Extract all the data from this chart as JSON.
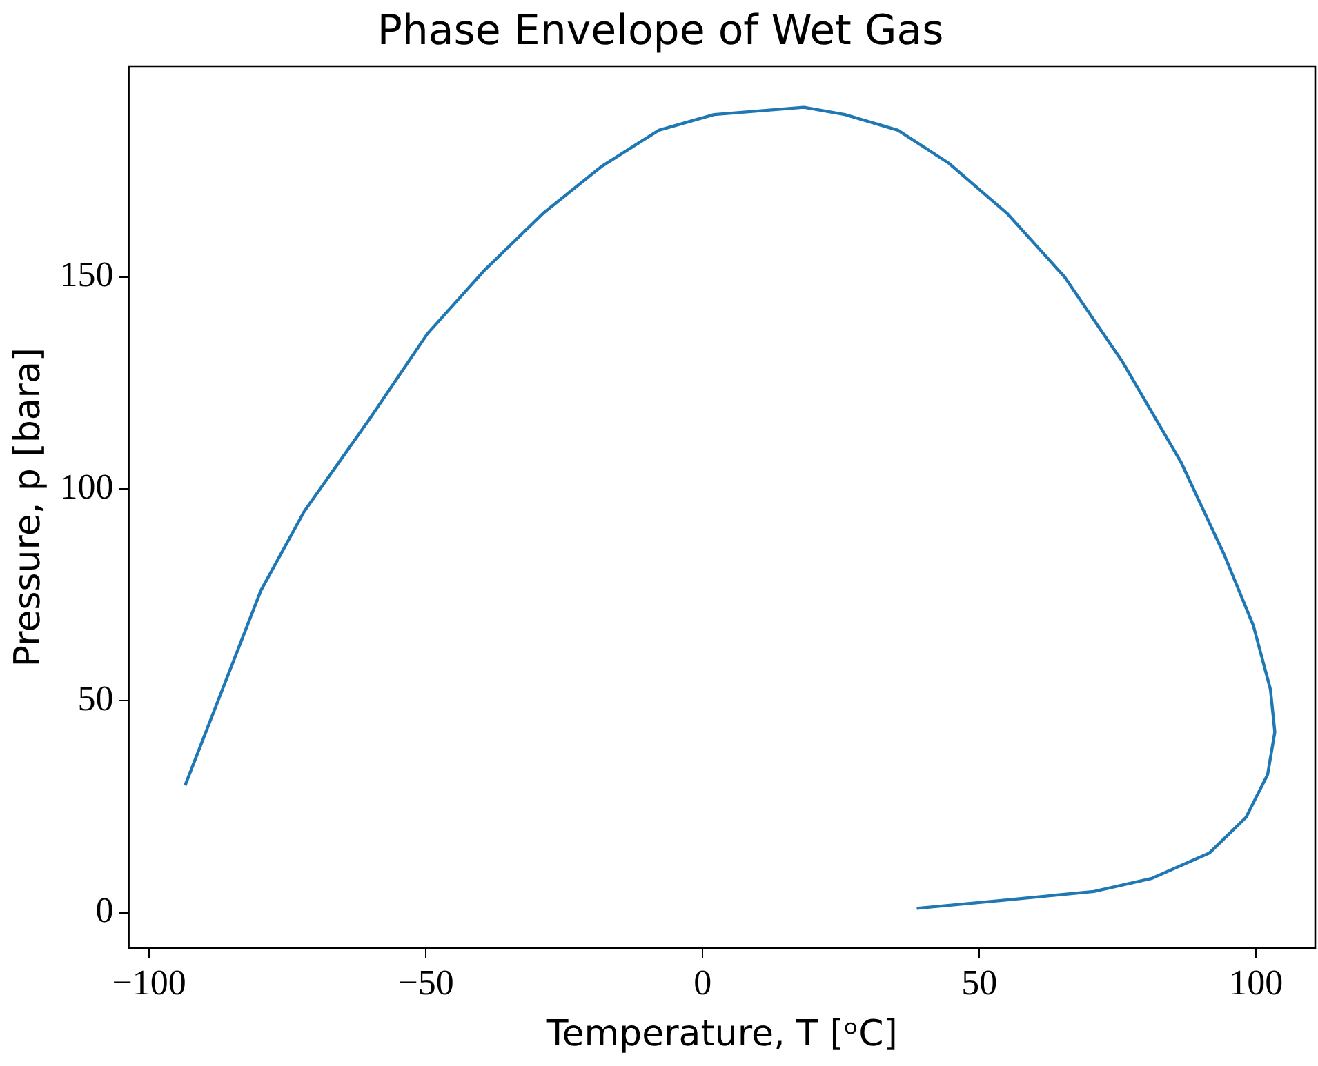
{
  "chart_data": {
    "type": "line",
    "title": "Phase Envelope of Wet Gas",
    "xlabel": "Temperature, T [ᵒC]",
    "ylabel": "Pressure, p [bara]",
    "x": [
      -93.5,
      -79.8,
      -72,
      -60.2,
      -49.7,
      -39.3,
      -28.8,
      -18.3,
      -7.9,
      2.1,
      18.3,
      25.7,
      35.3,
      44.5,
      55,
      65.4,
      75.9,
      86.4,
      94.2,
      99.5,
      102.6,
      103.4,
      102.1,
      98.2,
      91.6,
      81.2,
      70.7,
      55,
      38.7
    ],
    "series": [
      {
        "color": "#1f77b4",
        "values": [
          30,
          76,
          94.6,
          116.4,
          136.6,
          151.7,
          165,
          176,
          184.6,
          188.3,
          190,
          188.3,
          184.6,
          176.8,
          165,
          150,
          129.9,
          106.4,
          84.6,
          67.8,
          52.7,
          42.6,
          32.6,
          22.5,
          14.1,
          8.1,
          5,
          3,
          1
        ]
      }
    ],
    "xlim": [
      -103.7,
      110.7
    ],
    "xticks": [
      -100,
      -50,
      0,
      50,
      100
    ],
    "ylim": [
      -8.4,
      199.7
    ],
    "yticks": [
      0,
      50,
      100,
      150
    ],
    "grid": false,
    "legend": false,
    "marker": "none",
    "line_style": "solid"
  }
}
